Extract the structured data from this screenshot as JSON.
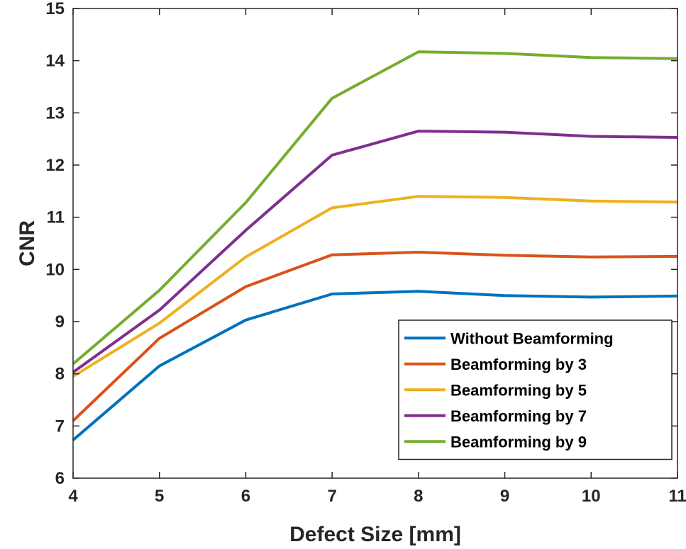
{
  "chart_data": {
    "type": "line",
    "title": "",
    "xlabel": "Defect Size [mm]",
    "ylabel": "CNR",
    "xlim": [
      4,
      11
    ],
    "ylim": [
      6,
      15
    ],
    "x": [
      4,
      5,
      6,
      7,
      8,
      9,
      10,
      11
    ],
    "x_ticks": [
      4,
      5,
      6,
      7,
      8,
      9,
      10,
      11
    ],
    "y_ticks": [
      6,
      7,
      8,
      9,
      10,
      11,
      12,
      13,
      14,
      15
    ],
    "grid": false,
    "legend_position": "bottom-right",
    "series": [
      {
        "name": "Without Beamforming",
        "color": "#0072BD",
        "values": [
          6.73,
          8.15,
          9.03,
          9.53,
          9.58,
          9.5,
          9.47,
          9.49
        ]
      },
      {
        "name": "Beamforming by 3",
        "color": "#D95319",
        "values": [
          7.1,
          8.68,
          9.67,
          10.28,
          10.33,
          10.27,
          10.24,
          10.25
        ]
      },
      {
        "name": "Beamforming by 5",
        "color": "#EDB120",
        "values": [
          7.95,
          8.97,
          10.24,
          11.18,
          11.4,
          11.38,
          11.31,
          11.29
        ]
      },
      {
        "name": "Beamforming by 7",
        "color": "#7E2F8E",
        "values": [
          8.03,
          9.22,
          10.75,
          12.19,
          12.65,
          12.63,
          12.55,
          12.53
        ]
      },
      {
        "name": "Beamforming by 9",
        "color": "#77AC30",
        "values": [
          8.19,
          9.6,
          11.28,
          13.28,
          14.17,
          14.14,
          14.06,
          14.04
        ]
      }
    ]
  }
}
